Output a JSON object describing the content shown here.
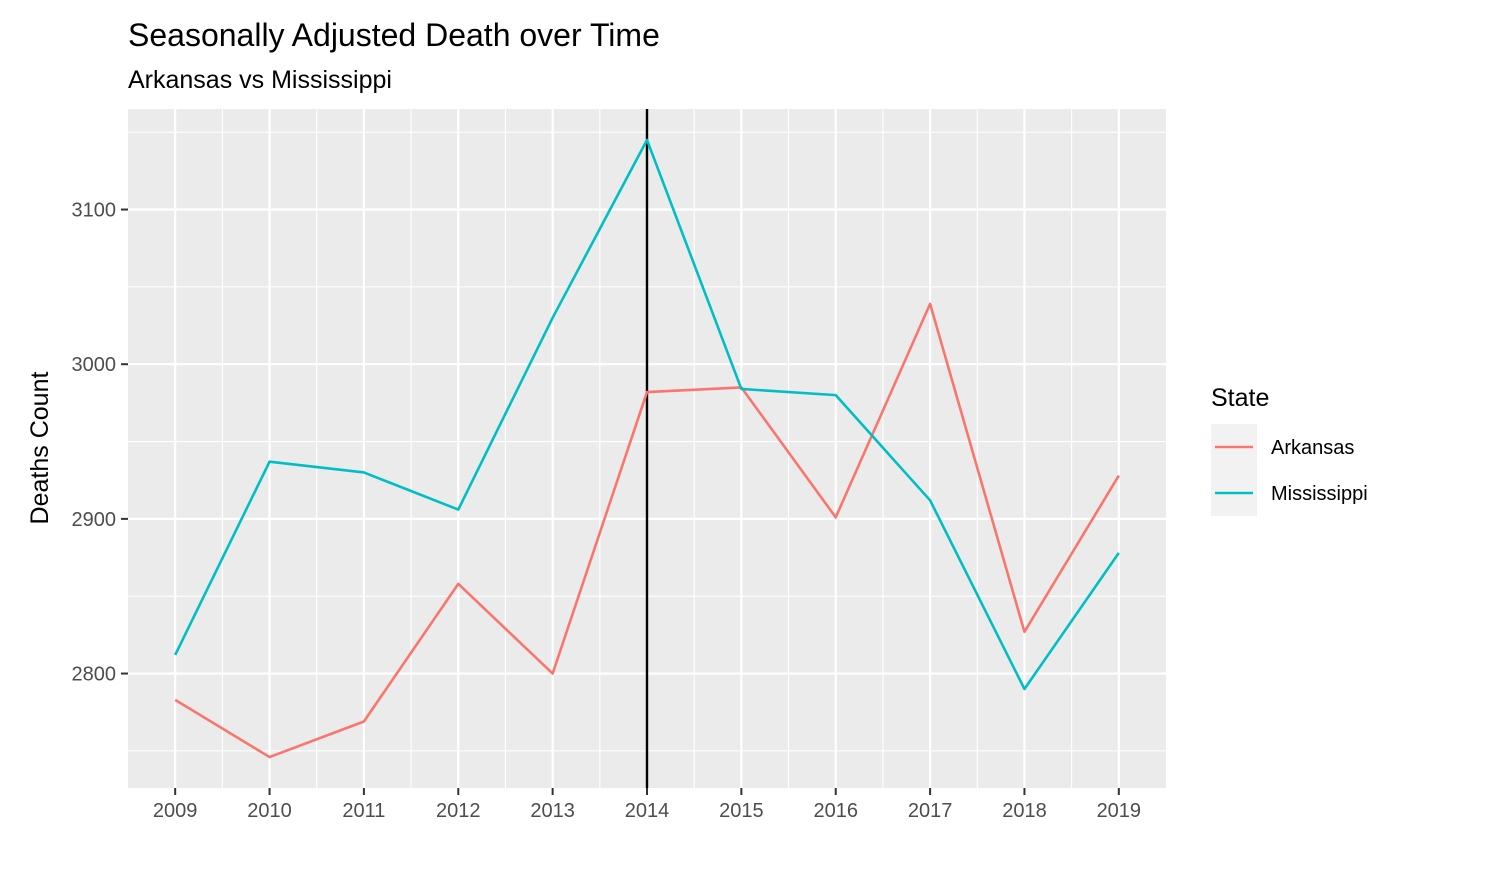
{
  "chart_data": {
    "type": "line",
    "title": "Seasonally Adjusted Death over Time",
    "subtitle": "Arkansas vs Mississippi",
    "xlabel": "",
    "ylabel": "Deaths Count",
    "x": [
      2009,
      2010,
      2011,
      2012,
      2013,
      2014,
      2015,
      2016,
      2017,
      2018,
      2019
    ],
    "x_tick_labels": [
      "2009",
      "2010",
      "2011",
      "2012",
      "2013",
      "2014",
      "2015",
      "2016",
      "2017",
      "2018",
      "2019"
    ],
    "y_tick_values": [
      2800,
      2900,
      3000,
      3100
    ],
    "y_tick_labels": [
      "2800",
      "2900",
      "3000",
      "3100"
    ],
    "xlim": [
      2008.5,
      2019.5
    ],
    "ylim": [
      2726,
      3165
    ],
    "grid": true,
    "legend": {
      "title": "State",
      "position": "right"
    },
    "vline": {
      "x": 2014,
      "color": "#000000"
    },
    "series": [
      {
        "name": "Arkansas",
        "color": "#F8766D",
        "values": [
          2783,
          2746,
          2769,
          2858,
          2800,
          2982,
          2985,
          2901,
          3039,
          2827,
          2928
        ]
      },
      {
        "name": "Mississippi",
        "color": "#00BFC4",
        "values": [
          2812,
          2937,
          2930,
          2906,
          3030,
          3145,
          2984,
          2980,
          2912,
          2790,
          2878
        ]
      }
    ],
    "panel_color": "#EBEBEB",
    "grid_color": "#FFFFFF"
  }
}
